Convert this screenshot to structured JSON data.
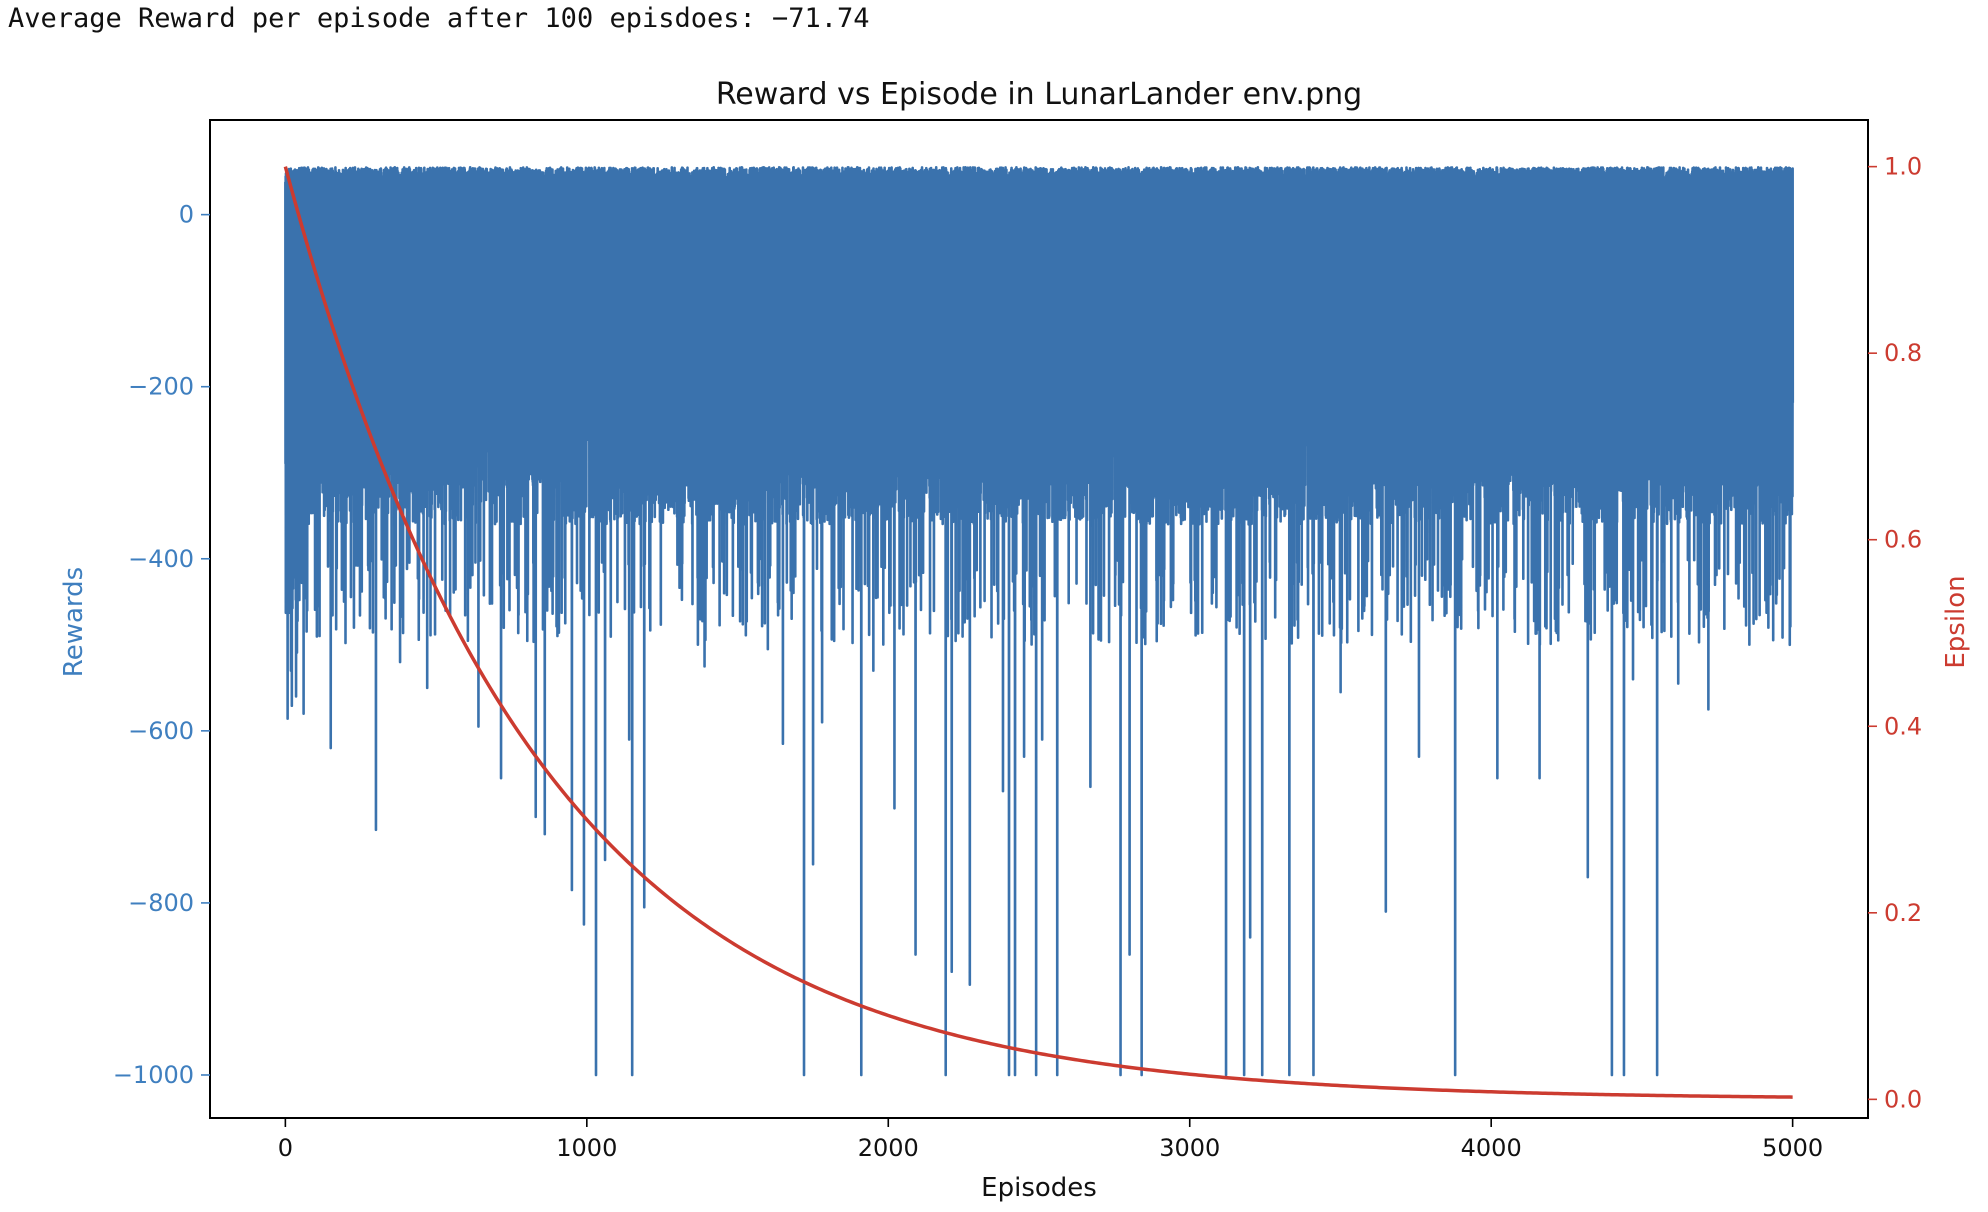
{
  "console": {
    "line": "Average Reward per episode after 100 episdoes: −71.74"
  },
  "chart_data": {
    "type": "line",
    "title": "Reward vs Episode in LunarLander env.png",
    "xlabel": "Episodes",
    "ylabel_left": "Rewards",
    "ylabel_right": "Epsilon",
    "xlim": [
      -250,
      5250
    ],
    "ylim_left": [
      -1050,
      110
    ],
    "ylim_right": [
      -0.02,
      1.05
    ],
    "x_ticks": [
      0,
      1000,
      2000,
      3000,
      4000,
      5000
    ],
    "x_tick_labels": [
      "0",
      "1000",
      "2000",
      "3000",
      "4000",
      "5000"
    ],
    "y_left_ticks": [
      0,
      -200,
      -400,
      -600,
      -800,
      -1000
    ],
    "y_left_tick_labels": [
      "0",
      "−200",
      "−400",
      "−600",
      "−800",
      "−1000"
    ],
    "y_right_ticks": [
      1.0,
      0.8,
      0.6,
      0.4,
      0.2,
      0.0
    ],
    "y_right_tick_labels": [
      "1.0",
      "0.8",
      "0.6",
      "0.4",
      "0.2",
      "0.0"
    ],
    "grid": false,
    "colors": {
      "rewards": "#3a72ad",
      "epsilon": "#cc3b30",
      "left_axis": "#3f7fbf",
      "right_axis": "#cc3b30"
    },
    "series": [
      {
        "axis": "left",
        "episodes": 5000,
        "value_range": [
          -1000,
          55
        ],
        "typical_low_envelope": [
          -500,
          -300
        ],
        "spikes": [
          {
            "x": 18,
            "y": -530
          },
          {
            "x": 35,
            "y": -560
          },
          {
            "x": 60,
            "y": -580
          },
          {
            "x": 150,
            "y": -620
          },
          {
            "x": 300,
            "y": -715
          },
          {
            "x": 380,
            "y": -520
          },
          {
            "x": 470,
            "y": -550
          },
          {
            "x": 640,
            "y": -595
          },
          {
            "x": 715,
            "y": -655
          },
          {
            "x": 830,
            "y": -700
          },
          {
            "x": 860,
            "y": -720
          },
          {
            "x": 950,
            "y": -785
          },
          {
            "x": 990,
            "y": -825
          },
          {
            "x": 1030,
            "y": -1000
          },
          {
            "x": 1060,
            "y": -750
          },
          {
            "x": 1140,
            "y": -610
          },
          {
            "x": 1150,
            "y": -1000
          },
          {
            "x": 1190,
            "y": -805
          },
          {
            "x": 1390,
            "y": -525
          },
          {
            "x": 1600,
            "y": -505
          },
          {
            "x": 1650,
            "y": -615
          },
          {
            "x": 1720,
            "y": -1000
          },
          {
            "x": 1750,
            "y": -755
          },
          {
            "x": 1780,
            "y": -590
          },
          {
            "x": 1910,
            "y": -1000
          },
          {
            "x": 1950,
            "y": -530
          },
          {
            "x": 2020,
            "y": -690
          },
          {
            "x": 2090,
            "y": -860
          },
          {
            "x": 2190,
            "y": -1000
          },
          {
            "x": 2210,
            "y": -880
          },
          {
            "x": 2270,
            "y": -895
          },
          {
            "x": 2380,
            "y": -670
          },
          {
            "x": 2400,
            "y": -1000
          },
          {
            "x": 2420,
            "y": -1000
          },
          {
            "x": 2450,
            "y": -630
          },
          {
            "x": 2490,
            "y": -1000
          },
          {
            "x": 2510,
            "y": -610
          },
          {
            "x": 2560,
            "y": -1000
          },
          {
            "x": 2670,
            "y": -665
          },
          {
            "x": 2770,
            "y": -1000
          },
          {
            "x": 2800,
            "y": -860
          },
          {
            "x": 2840,
            "y": -1000
          },
          {
            "x": 3120,
            "y": -1000
          },
          {
            "x": 3180,
            "y": -1000
          },
          {
            "x": 3200,
            "y": -840
          },
          {
            "x": 3240,
            "y": -1000
          },
          {
            "x": 3330,
            "y": -1000
          },
          {
            "x": 3410,
            "y": -1000
          },
          {
            "x": 3500,
            "y": -555
          },
          {
            "x": 3650,
            "y": -810
          },
          {
            "x": 3760,
            "y": -630
          },
          {
            "x": 3880,
            "y": -1000
          },
          {
            "x": 4020,
            "y": -655
          },
          {
            "x": 4160,
            "y": -655
          },
          {
            "x": 4320,
            "y": -770
          },
          {
            "x": 4400,
            "y": -1000
          },
          {
            "x": 4440,
            "y": -1000
          },
          {
            "x": 4470,
            "y": -540
          },
          {
            "x": 4550,
            "y": -1000
          },
          {
            "x": 4620,
            "y": -545
          },
          {
            "x": 4720,
            "y": -575
          },
          {
            "x": 4990,
            "y": -500
          }
        ]
      },
      {
        "axis": "right",
        "x": [
          0,
          250,
          500,
          750,
          1000,
          1250,
          1500,
          1750,
          2000,
          2250,
          2500,
          2750,
          3000,
          3250,
          3500,
          3750,
          4000,
          4250,
          4500,
          4750,
          5000
        ],
        "values": [
          1.0,
          0.74,
          0.547,
          0.405,
          0.301,
          0.223,
          0.165,
          0.123,
          0.091,
          0.067,
          0.05,
          0.037,
          0.027,
          0.02,
          0.015,
          0.011,
          0.008,
          0.006,
          0.005,
          0.004,
          0.003
        ]
      }
    ]
  }
}
